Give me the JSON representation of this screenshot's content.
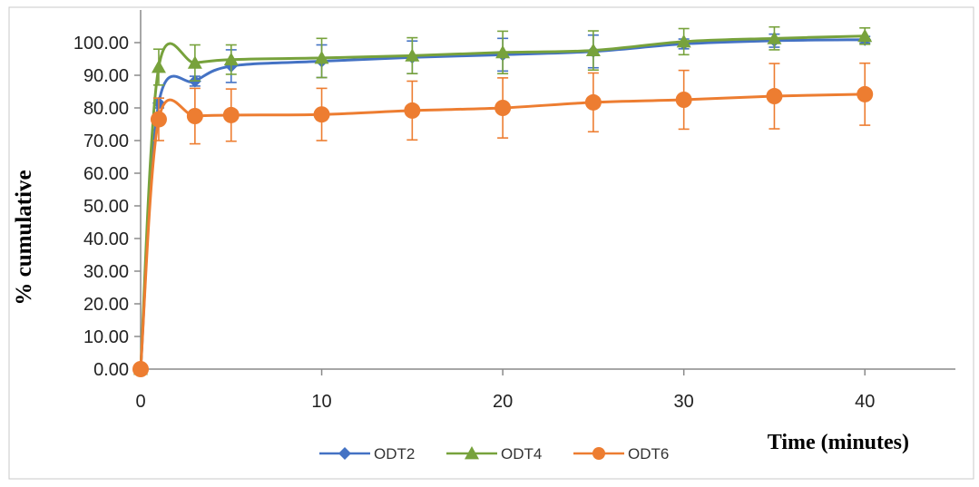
{
  "chart_data": {
    "type": "line",
    "title": "",
    "xlabel": "Time (minutes)",
    "ylabel": "% cumulative",
    "x": [
      0,
      1,
      3,
      5,
      10,
      15,
      20,
      25,
      30,
      35,
      40
    ],
    "xlim": [
      0,
      45
    ],
    "ylim": [
      0,
      105
    ],
    "x_ticks": [
      "0",
      "10",
      "20",
      "30",
      "40"
    ],
    "y_ticks": [
      "0.00",
      "10.00",
      "20.00",
      "30.00",
      "40.00",
      "50.00",
      "60.00",
      "70.00",
      "80.00",
      "90.00",
      "100.00"
    ],
    "grid": false,
    "legend_position": "bottom",
    "series": [
      {
        "name": "ODT2",
        "color": "#4472C4",
        "marker": "diamond",
        "values": [
          0,
          81.5,
          88.2,
          92.8,
          94.3,
          95.5,
          96.3,
          97.3,
          99.6,
          100.6,
          100.9
        ],
        "errors": [
          0,
          1.5,
          1.5,
          5,
          5,
          5,
          5,
          5,
          1.5,
          2,
          1
        ]
      },
      {
        "name": "ODT4",
        "color": "#77A23C",
        "marker": "triangle",
        "values": [
          0,
          92.5,
          93.8,
          94.8,
          95.3,
          96.0,
          97.0,
          97.6,
          100.3,
          101.3,
          102.0
        ],
        "errors": [
          0,
          5.5,
          5.5,
          4.5,
          6,
          5.5,
          6.5,
          6,
          4,
          3.5,
          2.5
        ]
      },
      {
        "name": "ODT6",
        "color": "#ED7D31",
        "marker": "circle",
        "values": [
          0,
          76.5,
          77.5,
          77.8,
          78.0,
          79.2,
          80.0,
          81.7,
          82.5,
          83.6,
          84.2
        ],
        "errors": [
          0,
          6.5,
          8.5,
          8,
          8,
          9,
          9.2,
          9,
          9,
          10,
          9.5
        ]
      }
    ]
  }
}
